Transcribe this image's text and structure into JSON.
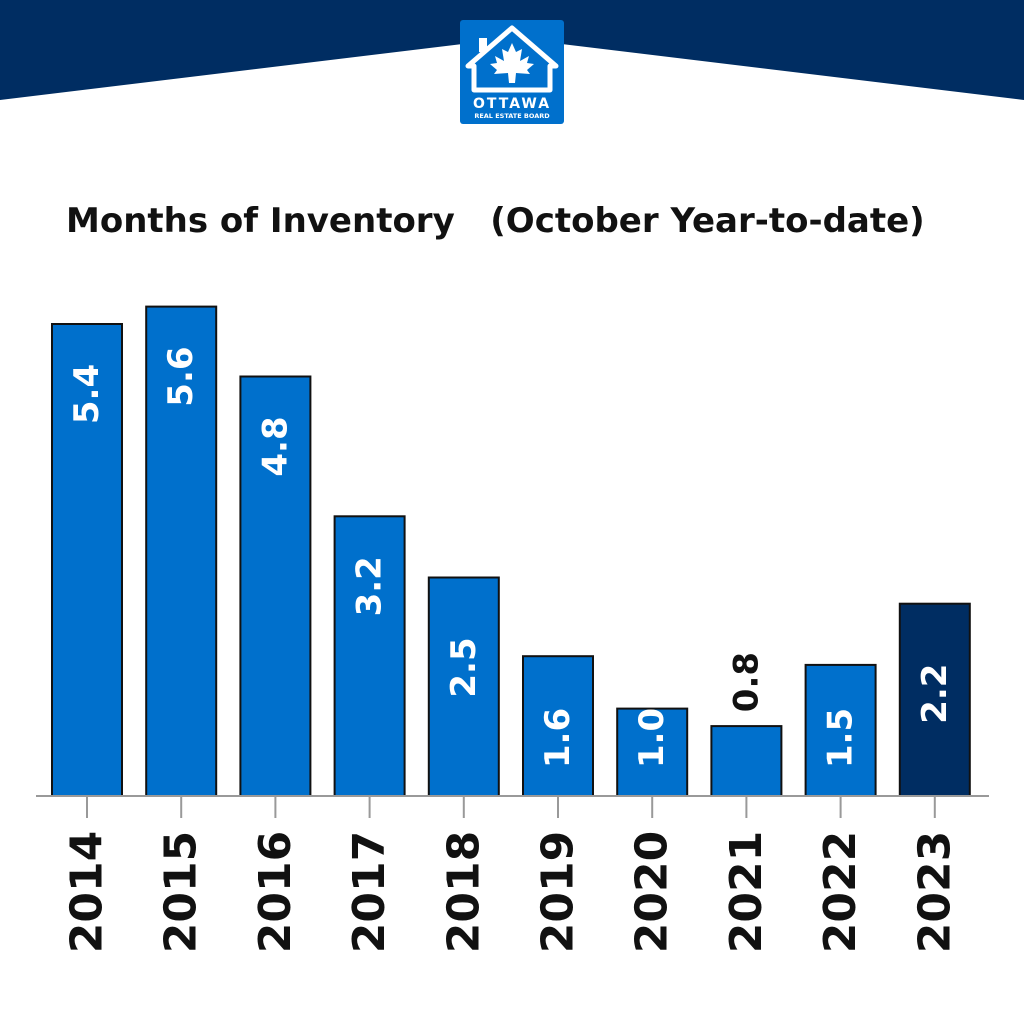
{
  "brand": {
    "logo_text_line1": "OTTAWA",
    "logo_text_line2": "REAL ESTATE BOARD",
    "header_color": "#002d62",
    "logo_color": "#0070cc"
  },
  "colors": {
    "bar": "#0070cc",
    "bar_highlight": "#002d62",
    "axis": "#999999",
    "label_inside": "#ffffff",
    "label_outside": "#111111"
  },
  "chart_data": {
    "type": "bar",
    "title": "Months of Inventory   (October Year-to-date)",
    "categories": [
      "2014",
      "2015",
      "2016",
      "2017",
      "2018",
      "2019",
      "2020",
      "2021",
      "2022",
      "2023"
    ],
    "values": [
      5.4,
      5.6,
      4.8,
      3.2,
      2.5,
      1.6,
      1.0,
      0.8,
      1.5,
      2.2
    ],
    "value_labels": [
      "5.4",
      "5.6",
      "4.8",
      "3.2",
      "2.5",
      "1.6",
      "1.0",
      "0.8",
      "1.5",
      "2.2"
    ],
    "highlight_category": "2023",
    "xlabel": "",
    "ylabel": "",
    "grid": false,
    "legend": "none"
  }
}
